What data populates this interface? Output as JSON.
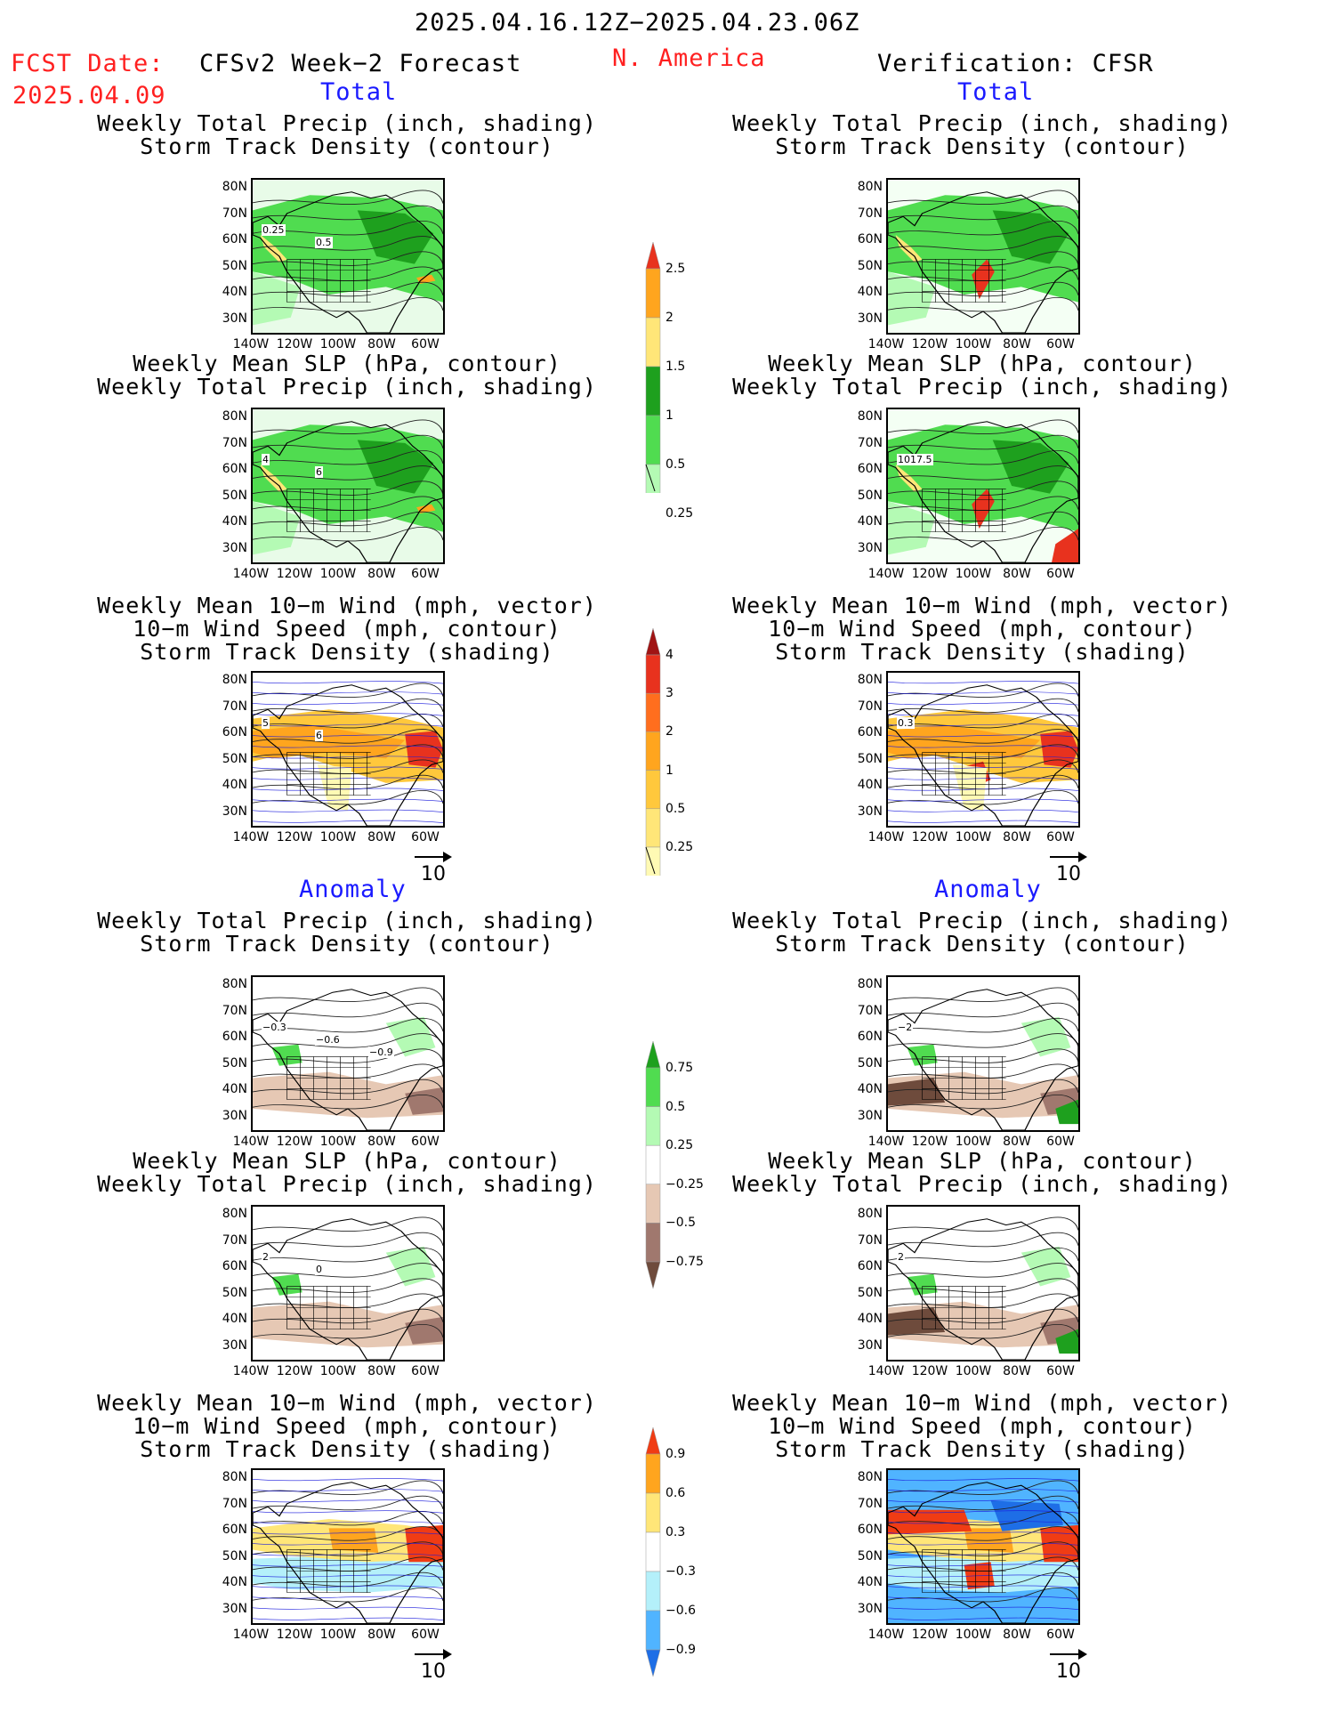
{
  "header": {
    "period": "2025.04.16.12Z−2025.04.23.06Z",
    "fcst_label": "FCST Date:",
    "fcst_date": "2025.04.09",
    "model": "CFSv2 Week−2 Forecast",
    "region": "N. America",
    "verification": "Verification: CFSR",
    "total_left": "Total",
    "total_right": "Total",
    "anomaly_left": "Anomaly",
    "anomaly_right": "Anomaly"
  },
  "titles": {
    "precip_storm": [
      "Weekly Total Precip (inch, shading)",
      "Storm Track Density (contour)"
    ],
    "slp_precip": [
      "Weekly Mean SLP (hPa, contour)",
      "Weekly Total Precip (inch, shading)"
    ],
    "wind": [
      "Weekly Mean 10−m Wind (mph, vector)",
      "10−m Wind Speed (mph, contour)",
      "Storm Track Density (shading)"
    ]
  },
  "axes": {
    "lat": [
      "80N",
      "70N",
      "60N",
      "50N",
      "40N",
      "30N"
    ],
    "lon": [
      "140W",
      "120W",
      "100W",
      "80W",
      "60W"
    ]
  },
  "vector_ref": "10",
  "colorbars": {
    "precip_total": {
      "labels": [
        "2.5",
        "2",
        "1.5",
        "1",
        "0.5",
        "0.25"
      ],
      "colors": [
        "#e8321e",
        "#ffa51e",
        "#ffe678",
        "#1ea01e",
        "#50dc50",
        "#b4fab4"
      ]
    },
    "storm_total": {
      "labels": [
        "4",
        "3",
        "2",
        "1",
        "0.5",
        "0.25"
      ],
      "colors": [
        "#a01414",
        "#e8321e",
        "#ff6e1e",
        "#ffa51e",
        "#ffc83c",
        "#ffe678",
        "#fffab4"
      ]
    },
    "precip_anom": {
      "labels": [
        "0.75",
        "0.5",
        "0.25",
        "−0.25",
        "−0.5",
        "−0.75"
      ],
      "colors": [
        "#1ea01e",
        "#50dc50",
        "#b4fab4",
        "#ffffff",
        "#e6c8b4",
        "#a0786e",
        "#6e4b3c"
      ]
    },
    "storm_anom": {
      "labels": [
        "0.9",
        "0.6",
        "0.3",
        "−0.3",
        "−0.6",
        "−0.9"
      ],
      "colors": [
        "#f03c14",
        "#ffa51e",
        "#ffe678",
        "#ffffff",
        "#b4f0fa",
        "#50b4ff",
        "#1e6ee6"
      ]
    }
  },
  "contour_labels": {
    "p1": [
      "0.25",
      "0.5"
    ],
    "p2": [],
    "p3": [
      "4",
      "6"
    ],
    "p4": [
      "1017.5"
    ],
    "p5": [
      "5",
      "6"
    ],
    "p6": [
      "0.3"
    ],
    "p7": [
      "−0.3",
      "−0.6",
      "−0.9"
    ],
    "p8": [
      "−2"
    ],
    "p9": [
      "2",
      "0"
    ],
    "p10": [
      "2"
    ]
  }
}
